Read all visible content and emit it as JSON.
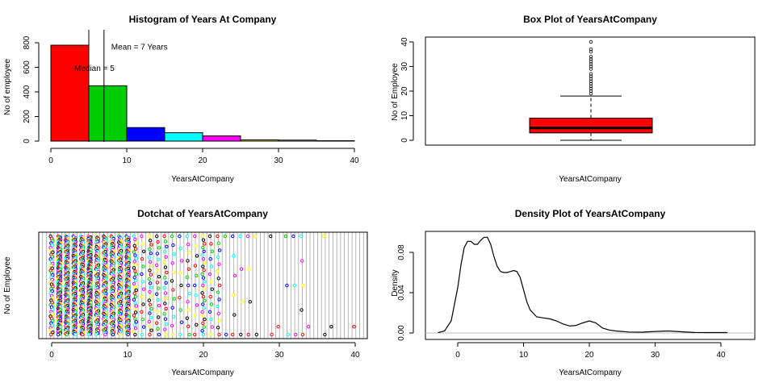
{
  "chart_data": [
    {
      "type": "bar",
      "title": "Histogram of Years At Company",
      "xlabel": "YearsAtCompany",
      "ylabel": "No of employee",
      "xlim": [
        0,
        40
      ],
      "ylim": [
        0,
        800
      ],
      "x_ticks": [
        "0",
        "10",
        "20",
        "30",
        "40"
      ],
      "y_ticks": [
        "0",
        "200",
        "400",
        "600",
        "800"
      ],
      "bins": [
        {
          "from": 0,
          "to": 5,
          "count": 780,
          "color": "#ff0000"
        },
        {
          "from": 5,
          "to": 10,
          "count": 450,
          "color": "#00cd00"
        },
        {
          "from": 10,
          "to": 15,
          "count": 110,
          "color": "#0000ff"
        },
        {
          "from": 15,
          "to": 20,
          "count": 68,
          "color": "#00ffff"
        },
        {
          "from": 20,
          "to": 25,
          "count": 42,
          "color": "#ff00ff"
        },
        {
          "from": 25,
          "to": 30,
          "count": 10,
          "color": "#ffff00"
        },
        {
          "from": 30,
          "to": 35,
          "count": 8,
          "color": "#ffffff"
        },
        {
          "from": 35,
          "to": 40,
          "count": 3,
          "color": "#ffffff"
        }
      ],
      "annotations": [
        {
          "text": "Mean = 7 Years",
          "x": 7,
          "y": 765,
          "line_at": 7,
          "color": "#000000"
        },
        {
          "text": "Median = 5",
          "x": 5,
          "y": 590,
          "line_at": 5,
          "color": "#0000ff"
        }
      ]
    },
    {
      "type": "box",
      "title": "Box Plot of YearsAtCompany",
      "xlabel": "YearsAtCompany",
      "ylabel": "No of Employee",
      "ylim": [
        0,
        40
      ],
      "y_ticks": [
        "0",
        "10",
        "20",
        "30",
        "40"
      ],
      "box_color": "#ff0000",
      "stats": {
        "min": 0,
        "q1": 3,
        "median": 5,
        "q3": 9,
        "whisker_high": 18
      },
      "outliers": [
        19,
        20,
        21,
        22,
        23,
        24,
        25,
        26,
        27,
        29,
        30,
        31,
        32,
        33,
        34,
        36,
        37,
        40
      ]
    },
    {
      "type": "scatter",
      "title": "Dotchat of YearsAtCompany",
      "xlabel": "YearsAtCompany",
      "ylabel": "No of Employee",
      "xlim": [
        0,
        40
      ],
      "x_ticks": [
        "0",
        "10",
        "20",
        "30",
        "40"
      ],
      "point_colors": [
        "#000000",
        "#ff0000",
        "#00cd00",
        "#0000ff",
        "#00ffff",
        "#ff00ff",
        "#ffff00"
      ],
      "counts_by_year": [
        {
          "x": 0,
          "n": 44
        },
        {
          "x": 1,
          "n": 171
        },
        {
          "x": 2,
          "n": 127
        },
        {
          "x": 3,
          "n": 128
        },
        {
          "x": 4,
          "n": 110
        },
        {
          "x": 5,
          "n": 196
        },
        {
          "x": 6,
          "n": 76
        },
        {
          "x": 7,
          "n": 90
        },
        {
          "x": 8,
          "n": 80
        },
        {
          "x": 9,
          "n": 82
        },
        {
          "x": 10,
          "n": 120
        },
        {
          "x": 11,
          "n": 32
        },
        {
          "x": 12,
          "n": 14
        },
        {
          "x": 13,
          "n": 24
        },
        {
          "x": 14,
          "n": 18
        },
        {
          "x": 15,
          "n": 20
        },
        {
          "x": 16,
          "n": 12
        },
        {
          "x": 17,
          "n": 9
        },
        {
          "x": 18,
          "n": 13
        },
        {
          "x": 19,
          "n": 11
        },
        {
          "x": 20,
          "n": 27
        },
        {
          "x": 21,
          "n": 14
        },
        {
          "x": 22,
          "n": 15
        },
        {
          "x": 23,
          "n": 2
        },
        {
          "x": 24,
          "n": 6
        },
        {
          "x": 25,
          "n": 4
        },
        {
          "x": 26,
          "n": 4
        },
        {
          "x": 27,
          "n": 2
        },
        {
          "x": 29,
          "n": 2
        },
        {
          "x": 30,
          "n": 1
        },
        {
          "x": 31,
          "n": 3
        },
        {
          "x": 32,
          "n": 3
        },
        {
          "x": 33,
          "n": 5
        },
        {
          "x": 34,
          "n": 1
        },
        {
          "x": 36,
          "n": 2
        },
        {
          "x": 37,
          "n": 1
        },
        {
          "x": 40,
          "n": 1
        }
      ]
    },
    {
      "type": "line",
      "title": "Density Plot of YearsAtCompany",
      "xlabel": "YearsAtCompany",
      "ylabel": "Density",
      "xlim": [
        -5,
        45
      ],
      "ylim": [
        -0.002,
        0.098
      ],
      "x_ticks": [
        "0",
        "10",
        "20",
        "30",
        "40"
      ],
      "y_ticks": [
        "0.00",
        "0.04",
        "0.08"
      ],
      "x": [
        -3,
        -2,
        -1,
        0,
        0.5,
        1,
        1.5,
        2,
        2.5,
        3,
        3.5,
        4,
        4.5,
        5,
        5.5,
        6,
        6.5,
        7,
        7.5,
        8,
        8.5,
        9,
        9.5,
        10,
        10.5,
        11,
        12,
        13,
        14,
        15,
        16,
        17,
        18,
        19,
        20,
        21,
        22,
        23,
        24,
        26,
        28,
        30,
        32,
        34,
        36,
        38,
        41
      ],
      "y": [
        0.0003,
        0.002,
        0.012,
        0.045,
        0.068,
        0.085,
        0.091,
        0.091,
        0.088,
        0.088,
        0.092,
        0.095,
        0.095,
        0.088,
        0.076,
        0.066,
        0.061,
        0.06,
        0.06,
        0.061,
        0.062,
        0.061,
        0.055,
        0.043,
        0.031,
        0.023,
        0.016,
        0.015,
        0.014,
        0.012,
        0.009,
        0.007,
        0.0075,
        0.01,
        0.012,
        0.01,
        0.005,
        0.003,
        0.002,
        0.001,
        0.0008,
        0.0015,
        0.002,
        0.0012,
        0.0005,
        0.0004,
        0.0004
      ]
    }
  ]
}
